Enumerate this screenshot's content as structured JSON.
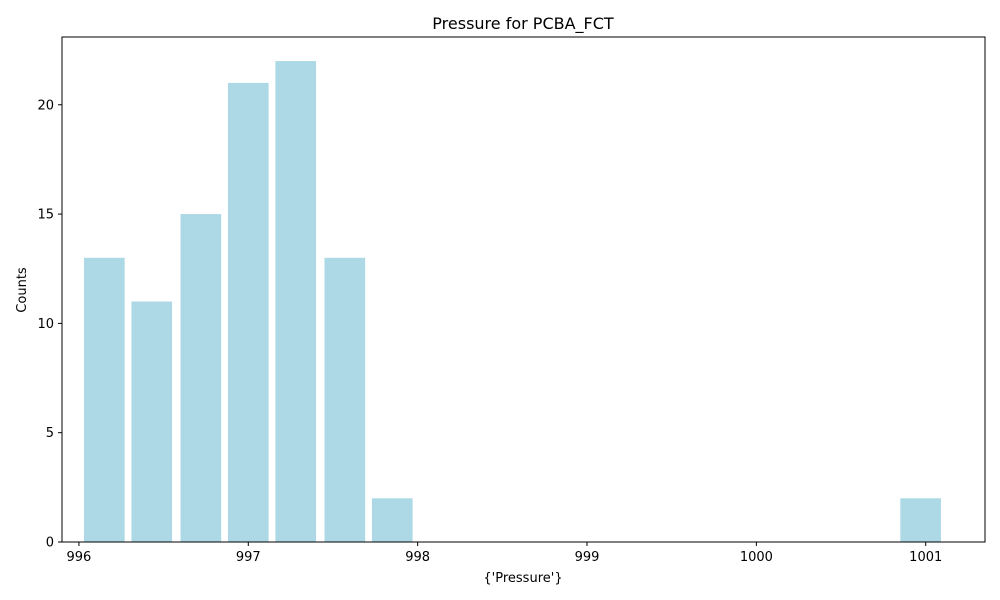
{
  "chart_data": {
    "type": "bar",
    "title": "Pressure for PCBA_FCT",
    "xlabel": "{'Pressure'}",
    "ylabel": "Counts",
    "bar_color": "#add8e6",
    "bars": [
      {
        "x": 996.15,
        "value": 13
      },
      {
        "x": 996.43,
        "value": 11
      },
      {
        "x": 996.72,
        "value": 15
      },
      {
        "x": 997.0,
        "value": 21
      },
      {
        "x": 997.28,
        "value": 22
      },
      {
        "x": 997.57,
        "value": 13
      },
      {
        "x": 997.85,
        "value": 2
      },
      {
        "x": 1000.97,
        "value": 2
      }
    ],
    "bar_width": 0.24,
    "xlim": [
      995.9,
      1001.35
    ],
    "ylim": [
      0,
      23.1
    ],
    "xticks": [
      996,
      997,
      998,
      999,
      1000,
      1001
    ],
    "yticks": [
      0,
      5,
      10,
      15,
      20
    ],
    "grid": false,
    "legend": "none"
  }
}
